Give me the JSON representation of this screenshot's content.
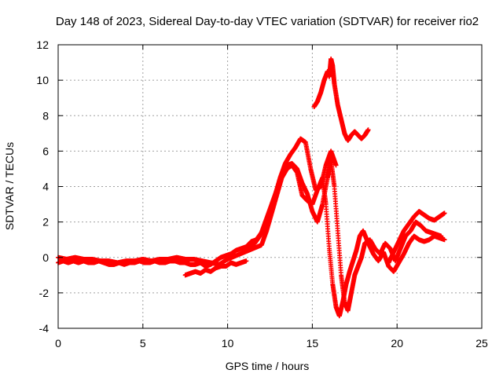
{
  "chart_data": {
    "type": "scatter",
    "title": "Day 148 of 2023, Sidereal Day-to-day VTEC variation (SDTVAR) for receiver rio2",
    "xlabel": "GPS time / hours",
    "ylabel": "SDTVAR / TECUs",
    "xlim": [
      0,
      25
    ],
    "ylim": [
      -4,
      12
    ],
    "xticks": [
      "0",
      "5",
      "10",
      "15",
      "20",
      "25"
    ],
    "yticks": [
      "-4",
      "-2",
      "0",
      "2",
      "4",
      "6",
      "8",
      "10",
      "12"
    ],
    "grid": true,
    "marker": "plus",
    "color": "#ff0000",
    "series": [
      {
        "x": [
          0.0,
          0.3,
          0.6,
          0.9,
          1.2,
          1.5,
          1.8,
          2.1,
          2.4,
          2.7,
          3.0,
          3.3,
          3.6,
          3.9,
          4.2,
          4.5,
          4.8,
          5.1,
          5.4,
          5.7,
          6.0,
          6.3,
          6.6,
          6.9,
          7.2,
          7.5,
          7.8,
          8.1,
          8.4,
          8.7,
          9.0,
          9.3,
          9.6,
          9.9,
          10.2,
          10.5,
          10.8,
          11.1,
          11.4,
          11.7,
          12.0,
          12.3,
          12.6,
          12.9,
          13.2,
          13.5,
          13.8,
          14.1,
          14.4,
          14.7,
          15.0,
          15.3,
          15.6,
          15.9,
          16.1,
          16.3,
          16.5,
          16.7,
          16.9,
          17.1,
          17.3,
          17.5,
          17.7,
          17.9,
          18.1,
          18.4,
          18.7,
          19.0,
          19.3,
          19.6,
          19.9,
          20.2,
          20.5,
          20.8,
          21.1,
          21.4,
          21.7,
          22.0,
          22.3,
          22.6
        ],
        "y": [
          -0.3,
          -0.2,
          -0.3,
          -0.2,
          -0.3,
          -0.2,
          -0.3,
          -0.3,
          -0.2,
          -0.3,
          -0.4,
          -0.4,
          -0.3,
          -0.4,
          -0.3,
          -0.3,
          -0.2,
          -0.3,
          -0.3,
          -0.2,
          -0.3,
          -0.3,
          -0.2,
          -0.2,
          -0.3,
          -0.3,
          -0.4,
          -0.4,
          -0.3,
          -0.5,
          -0.4,
          -0.2,
          0.0,
          0.1,
          0.2,
          0.4,
          0.5,
          0.6,
          0.9,
          1.0,
          1.4,
          2.2,
          3.0,
          3.8,
          4.6,
          5.2,
          5.3,
          5.0,
          4.2,
          3.6,
          2.6,
          2.0,
          3.0,
          4.5,
          5.5,
          4.0,
          1.5,
          -1.0,
          -2.5,
          -3.0,
          -2.0,
          -1.0,
          -0.5,
          0.0,
          0.8,
          1.0,
          0.5,
          0.2,
          0.8,
          0.5,
          -0.2,
          0.5,
          1.2,
          1.5,
          2.0,
          1.8,
          1.5,
          1.4,
          1.3,
          1.2
        ]
      },
      {
        "x": [
          0.0,
          0.5,
          1.0,
          1.5,
          2.0,
          2.5,
          3.0,
          3.5,
          4.0,
          4.5,
          5.0,
          5.5,
          6.0,
          6.5,
          7.0,
          7.5,
          8.0,
          8.5,
          9.0,
          9.5,
          10.0,
          10.5,
          11.0,
          11.5,
          12.0,
          12.3,
          12.6,
          12.9,
          13.2,
          13.5,
          13.8,
          14.1,
          14.4,
          14.7,
          15.0,
          15.3,
          15.6,
          15.8,
          16.0,
          16.2,
          16.4,
          16.6,
          16.8,
          17.0,
          17.2,
          17.4,
          17.6,
          17.8,
          18.0,
          18.3,
          18.6,
          18.9,
          19.2,
          19.5,
          19.8,
          20.1,
          20.4,
          20.7,
          21.0,
          21.3,
          21.6,
          21.9,
          22.2,
          22.5,
          22.8
        ],
        "y": [
          0.0,
          -0.1,
          0.0,
          -0.1,
          -0.1,
          -0.2,
          -0.2,
          -0.3,
          -0.2,
          -0.2,
          -0.1,
          -0.2,
          -0.1,
          -0.1,
          0.0,
          -0.1,
          -0.1,
          -0.2,
          -0.3,
          -0.4,
          -0.1,
          0.1,
          0.3,
          0.5,
          0.7,
          1.5,
          2.5,
          3.5,
          4.5,
          5.0,
          5.2,
          4.8,
          3.5,
          3.2,
          3.0,
          3.8,
          4.5,
          3.0,
          0.5,
          -1.5,
          -2.8,
          -3.3,
          -2.5,
          -1.5,
          -0.8,
          -0.2,
          0.4,
          1.2,
          1.5,
          0.8,
          0.2,
          -0.2,
          0.3,
          -0.5,
          -0.8,
          -0.3,
          0.2,
          0.8,
          1.2,
          1.0,
          0.9,
          1.0,
          1.2,
          1.1,
          1.0
        ]
      },
      {
        "x": [
          11.0,
          11.3,
          11.6,
          11.9,
          12.2,
          12.5,
          12.8,
          13.1,
          13.4,
          13.7,
          14.0,
          14.3,
          14.6,
          14.9,
          15.2,
          15.5,
          15.8,
          16.1,
          16.4
        ],
        "y": [
          0.3,
          0.6,
          0.8,
          1.2,
          1.8,
          2.5,
          3.5,
          4.5,
          5.3,
          5.8,
          6.2,
          6.7,
          6.5,
          5.0,
          3.8,
          4.0,
          5.2,
          6.0,
          5.2
        ]
      },
      {
        "x": [
          15.1,
          15.3,
          15.5,
          15.7,
          15.9,
          16.0,
          16.1,
          16.2,
          16.3,
          16.5,
          16.7,
          16.9,
          17.1,
          17.3,
          17.5,
          17.7,
          17.9,
          18.1,
          18.3
        ],
        "y": [
          8.5,
          8.8,
          9.3,
          10.0,
          10.5,
          10.2,
          11.2,
          10.8,
          9.8,
          8.6,
          7.8,
          7.0,
          6.6,
          6.9,
          7.1,
          6.9,
          6.7,
          6.9,
          7.2
        ]
      },
      {
        "x": [
          19.5,
          19.8,
          20.1,
          20.4,
          20.7,
          21.0,
          21.3,
          21.6,
          21.9,
          22.2,
          22.5,
          22.8
        ],
        "y": [
          -0.3,
          0.3,
          0.9,
          1.5,
          1.9,
          2.3,
          2.6,
          2.4,
          2.2,
          2.1,
          2.3,
          2.5
        ]
      },
      {
        "x": [
          7.5,
          7.8,
          8.1,
          8.4,
          8.7,
          9.0,
          9.3,
          9.6,
          9.9,
          10.2,
          10.5,
          10.8,
          11.1
        ],
        "y": [
          -1.0,
          -0.9,
          -0.8,
          -0.9,
          -0.7,
          -0.8,
          -0.6,
          -0.5,
          -0.5,
          -0.3,
          -0.4,
          -0.3,
          -0.2
        ]
      }
    ]
  }
}
